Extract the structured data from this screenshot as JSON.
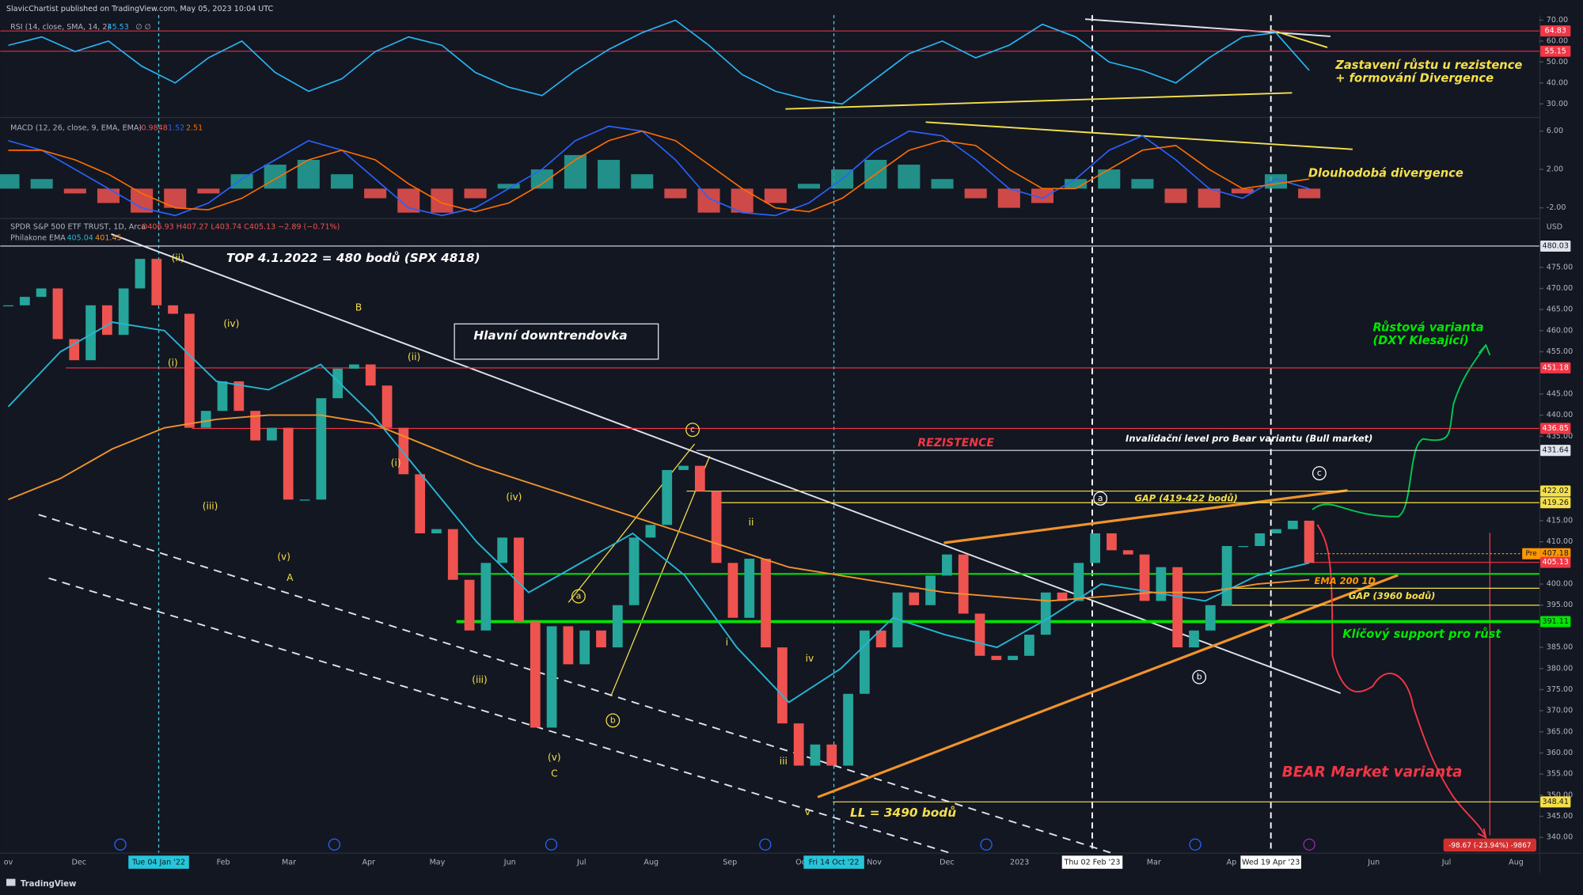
{
  "header": "SlavicChartist published on TradingView.com, May 05, 2023 10:04 UTC",
  "footer": "TradingView",
  "chart_data": [
    {
      "type": "line",
      "legend": [
        "RSI (14, close, SMA, 14, 2)",
        "45.53",
        "∅ ∅"
      ],
      "series": [
        {
          "color": "#29b6f6",
          "values": [
            58,
            62,
            55,
            60,
            48,
            40,
            52,
            60,
            45,
            36,
            42,
            55,
            62,
            58,
            45,
            38,
            34,
            46,
            56,
            64,
            70,
            58,
            44,
            36,
            32,
            30,
            42,
            54,
            60,
            52,
            58,
            68,
            62,
            50,
            46,
            40,
            52,
            62,
            64,
            46
          ]
        }
      ],
      "ylim": [
        24.2,
        72.4
      ],
      "yticks": [
        {
          "value": 70,
          "label": "70.00"
        },
        {
          "value": 60,
          "label": "60.00"
        },
        {
          "value": 50,
          "label": "50.00"
        },
        {
          "value": 40,
          "label": "40.00"
        },
        {
          "value": 30,
          "label": "30.00"
        }
      ],
      "levels": [
        {
          "value": 64.83,
          "label": "64.83",
          "color": "#f23645"
        },
        {
          "value": 55.15,
          "label": "55.15",
          "color": "#f23645"
        }
      ],
      "annotations": [
        {
          "text": "Zastavení růstu u rezistence",
          "color": "#f5e04a"
        },
        {
          "text": "+ formování Divergence",
          "color": "#f5e04a"
        }
      ]
    },
    {
      "type": "macd",
      "legend": [
        "MACD (12, 26, close, 9, EMA, EMA)",
        "-0.9848",
        "1.52",
        "2.51"
      ],
      "series": [
        {
          "color": "#2962ff",
          "values": [
            5,
            4,
            2,
            0,
            -2,
            -2.8,
            -1.5,
            1,
            3,
            5,
            4,
            1,
            -2,
            -2.8,
            -2,
            0,
            2,
            5,
            6.5,
            6,
            3,
            -1,
            -2.5,
            -2.8,
            -1.5,
            1,
            4,
            6,
            5.5,
            3,
            0,
            -1,
            1,
            4,
            5.5,
            3,
            0,
            -1,
            1,
            0
          ]
        },
        {
          "color": "#ff6d00",
          "values": [
            4,
            4,
            3,
            1.5,
            -0.5,
            -2,
            -2.2,
            -1,
            1,
            3,
            4,
            3,
            0.5,
            -1.5,
            -2.4,
            -1.5,
            0.5,
            3,
            5,
            6,
            5,
            2.5,
            0,
            -2,
            -2.4,
            -1,
            1.5,
            4,
            5,
            4.5,
            2,
            0,
            0,
            2,
            4,
            4.5,
            2,
            0,
            0.5,
            1
          ]
        }
      ],
      "histogram": [
        1.5,
        1,
        -0.5,
        -1.5,
        -2.5,
        -2,
        -0.5,
        1.5,
        2.5,
        3,
        1.5,
        -1,
        -2.5,
        -2.5,
        -1,
        0.5,
        2,
        3.5,
        3,
        1.5,
        -1,
        -2.5,
        -2.5,
        -1.5,
        0.5,
        2,
        3,
        2.5,
        1,
        -1,
        -2,
        -1.5,
        1,
        2,
        1,
        -1.5,
        -2,
        -0.5,
        1.5,
        -1
      ],
      "hist_up_color": "#26a69a",
      "hist_down_color": "#ef5350",
      "ylim": [
        -2.95,
        7.25
      ],
      "yticks": [
        {
          "value": 6,
          "label": "6.00"
        },
        {
          "value": 2,
          "label": "2.00"
        },
        {
          "value": -2,
          "label": "-2.00"
        }
      ],
      "annotations": [
        {
          "text": "Dlouhodobá divergence",
          "color": "#f5e04a"
        }
      ]
    },
    {
      "type": "candlestick",
      "legend_title": "SPDR S&P 500 ETF TRUST, 1D, Arca",
      "legend_ohlc": "O406.93 H407.27 L403.74 C405.13 −2.89 (−0.71%)",
      "ema_legend": "Philakone EMA",
      "ema_values": [
        "405.04",
        "401.45"
      ],
      "unit": "USD",
      "values": [
        466,
        468,
        470,
        458,
        453,
        466,
        459,
        470,
        477,
        466,
        464,
        437,
        441,
        448,
        441,
        434,
        437,
        420,
        420,
        444,
        451,
        452,
        447,
        437,
        426,
        412,
        413,
        401,
        389,
        405,
        411,
        391,
        366,
        390,
        381,
        389,
        385,
        395,
        411,
        414,
        427,
        428,
        422,
        405,
        392,
        406,
        385,
        367,
        357,
        362,
        357,
        374,
        389,
        385,
        398,
        395,
        402,
        407,
        393,
        383,
        382,
        383,
        388,
        398,
        396,
        405,
        412,
        408,
        407,
        396,
        404,
        385,
        389,
        395,
        409,
        409,
        412,
        413,
        415,
        405
      ],
      "up_color": "#26a69a",
      "down_color": "#ef5350",
      "series": [
        {
          "color": "#26b5d4",
          "values": [
            442,
            455,
            462,
            460,
            448,
            446,
            452,
            440,
            425,
            410,
            398,
            405,
            412,
            402,
            385,
            372,
            380,
            392,
            388,
            385,
            392,
            400,
            398,
            396,
            402,
            405
          ]
        },
        {
          "color": "#f0932b",
          "values": [
            420,
            425,
            432,
            437,
            439,
            440,
            440,
            438,
            433,
            428,
            424,
            420,
            416,
            412,
            408,
            404,
            402,
            400,
            398,
            397,
            396,
            397,
            398,
            398,
            400,
            401
          ]
        }
      ],
      "ylim": [
        336.4,
        486.45
      ],
      "yticks": [
        {
          "value": 475,
          "label": "475.00"
        },
        {
          "value": 470,
          "label": "470.00"
        },
        {
          "value": 465,
          "label": "465.00"
        },
        {
          "value": 460,
          "label": "460.00"
        },
        {
          "value": 455,
          "label": "455.00"
        },
        {
          "value": 445,
          "label": "445.00"
        },
        {
          "value": 440,
          "label": "440.00"
        },
        {
          "value": 435,
          "label": "435.00"
        },
        {
          "value": 415,
          "label": "415.00"
        },
        {
          "value": 410,
          "label": "410.00"
        },
        {
          "value": 400,
          "label": "400.00"
        },
        {
          "value": 395,
          "label": "395.00"
        },
        {
          "value": 385,
          "label": "385.00"
        },
        {
          "value": 380,
          "label": "380.00"
        },
        {
          "value": 375,
          "label": "375.00"
        },
        {
          "value": 370,
          "label": "370.00"
        },
        {
          "value": 365,
          "label": "365.00"
        },
        {
          "value": 360,
          "label": "360.00"
        },
        {
          "value": 355,
          "label": "355.00"
        },
        {
          "value": 350,
          "label": "350.00"
        },
        {
          "value": 345,
          "label": "345.00"
        },
        {
          "value": 340,
          "label": "340.00"
        }
      ],
      "levels": [
        {
          "value": 480.03,
          "label": "480.03",
          "color": "#e0e3eb"
        },
        {
          "value": 451.18,
          "label": "451.18",
          "color": "#f23645"
        },
        {
          "value": 436.85,
          "label": "436.85",
          "color": "#f23645"
        },
        {
          "value": 431.64,
          "label": "431.64",
          "color": "#e0e3eb"
        },
        {
          "value": 422.02,
          "label": "422.02",
          "color": "#f5e04a"
        },
        {
          "value": 419.26,
          "label": "419.26",
          "color": "#f5e04a"
        },
        {
          "value": 407.18,
          "label": "407.18",
          "tag": "Pre",
          "color": "#ff9800"
        },
        {
          "value": 405.13,
          "label": "405.13",
          "color": "#f23645"
        },
        {
          "value": 391.11,
          "label": "391.11",
          "color": "#00e600"
        },
        {
          "value": 348.41,
          "label": "348.41",
          "color": "#f5e04a"
        }
      ],
      "lines": [
        {
          "value": 402.4,
          "color": "#00e600"
        },
        {
          "value": 399,
          "color": "#f5e04a"
        },
        {
          "value": 395,
          "color": "#f5e04a"
        }
      ],
      "loss_badge": "-98.67 (-23.94%) -9867",
      "xlabels": [
        {
          "label": "ov"
        },
        {
          "label": "Dec"
        },
        {
          "label": "Tue 04 Jan '22",
          "style": "cyan"
        },
        {
          "label": "Feb"
        },
        {
          "label": "Mar"
        },
        {
          "label": "Apr"
        },
        {
          "label": "May"
        },
        {
          "label": "Jun"
        },
        {
          "label": "Jul"
        },
        {
          "label": "Aug"
        },
        {
          "label": "Sep"
        },
        {
          "label": "Oc"
        },
        {
          "label": "Fri 14 Oct '22",
          "style": "cyan"
        },
        {
          "label": "Nov"
        },
        {
          "label": "Dec"
        },
        {
          "label": "2023"
        },
        {
          "label": "Thu 02 Feb '23",
          "style": "white"
        },
        {
          "label": "Mar"
        },
        {
          "label": "Ap"
        },
        {
          "label": "Wed 19 Apr '23",
          "style": "white"
        },
        {
          "label": "Jun"
        },
        {
          "label": "Jul"
        },
        {
          "label": "Aug"
        }
      ],
      "annotations": [
        {
          "text": "TOP 4.1.2022 = 480 bodů (SPX 4818)",
          "color": "#ffffff"
        },
        {
          "text": "Hlavní downtrendovka",
          "color": "#ffffff"
        },
        {
          "text": "REZISTENCE",
          "color": "#f23645"
        },
        {
          "text": "Invalidační level pro Bear variantu (Bull market)",
          "color": "#ffffff"
        },
        {
          "text": "GAP (419-422 bodů)",
          "color": "#f5e04a"
        },
        {
          "text": "EMA 200 1D",
          "color": "#ff9800"
        },
        {
          "text": "GAP (3960 bodů)",
          "color": "#f5e04a"
        },
        {
          "text": "Klíčový support pro růst",
          "color": "#00e600"
        },
        {
          "text": "BEAR Market varianta",
          "color": "#f23645"
        },
        {
          "text": "LL = 3490 bodů",
          "color": "#f5e04a"
        },
        {
          "text": "Růstová varianta",
          "color": "#00e600"
        },
        {
          "text": "(DXY Klesající)",
          "color": "#00e600"
        }
      ],
      "wave_labels": [
        "(ii)",
        "(i)",
        "(iii)",
        "(iv)",
        "(v)",
        "A",
        "B",
        "(ii)",
        "(i)",
        "(iii)",
        "(iv)",
        "(v)",
        "C",
        "i",
        "ii",
        "iii",
        "iv",
        "v"
      ],
      "circled_labels": [
        "a",
        "b",
        "c",
        "a",
        "b",
        "c"
      ]
    }
  ]
}
